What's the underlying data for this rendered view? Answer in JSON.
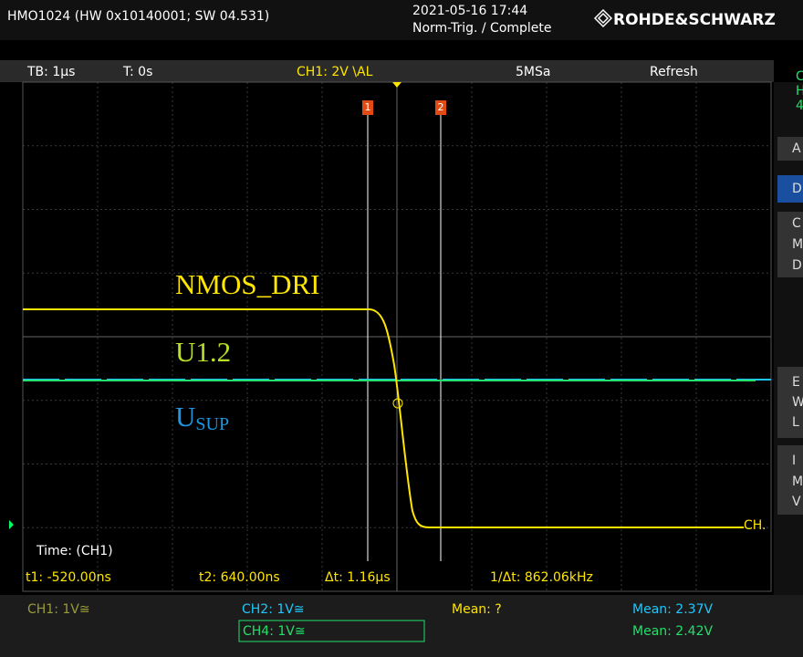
{
  "header": {
    "device": "HMO1024 (HW 0x10140001; SW 04.531)",
    "datetime": "2021-05-16 17:44",
    "status": "Norm-Trig. / Complete",
    "logo": "ROHDE&SCHWARZ"
  },
  "settings": {
    "timebase": "TB: 1µs",
    "trigger_time": "T: 0s",
    "trigger": "CH1: 2V \\AL",
    "sample_rate": "5MSa",
    "mode": "Refresh"
  },
  "cursors": {
    "c1": "1",
    "c2": "2"
  },
  "traces": {
    "t1": "NMOS_DRI",
    "t2": "U1.2",
    "t3_main": "U",
    "t3_sub": "SUP",
    "ch_end": "CH."
  },
  "measure": {
    "title": "Time: (CH1)",
    "t1": "t1: -520.00ns",
    "t2": "t2: 640.00ns",
    "dt": "Δt: 1.16µs",
    "inv_dt": "1/Δt: 862.06kHz"
  },
  "footer": {
    "ch1": "CH1: 1V≅",
    "ch2": "CH2: 1V≅",
    "ch4": "CH4: 1V≅",
    "mean_ch1": "Mean: ?",
    "mean_ch2": "Mean: 2.37V",
    "mean_ch4": "Mean: 2.42V"
  },
  "side": {
    "top": [
      "C",
      "H",
      "4"
    ],
    "buttons": [
      "A",
      "D",
      "C",
      "M",
      "D",
      "E",
      "W",
      "L",
      "I",
      "M",
      "V"
    ]
  }
}
